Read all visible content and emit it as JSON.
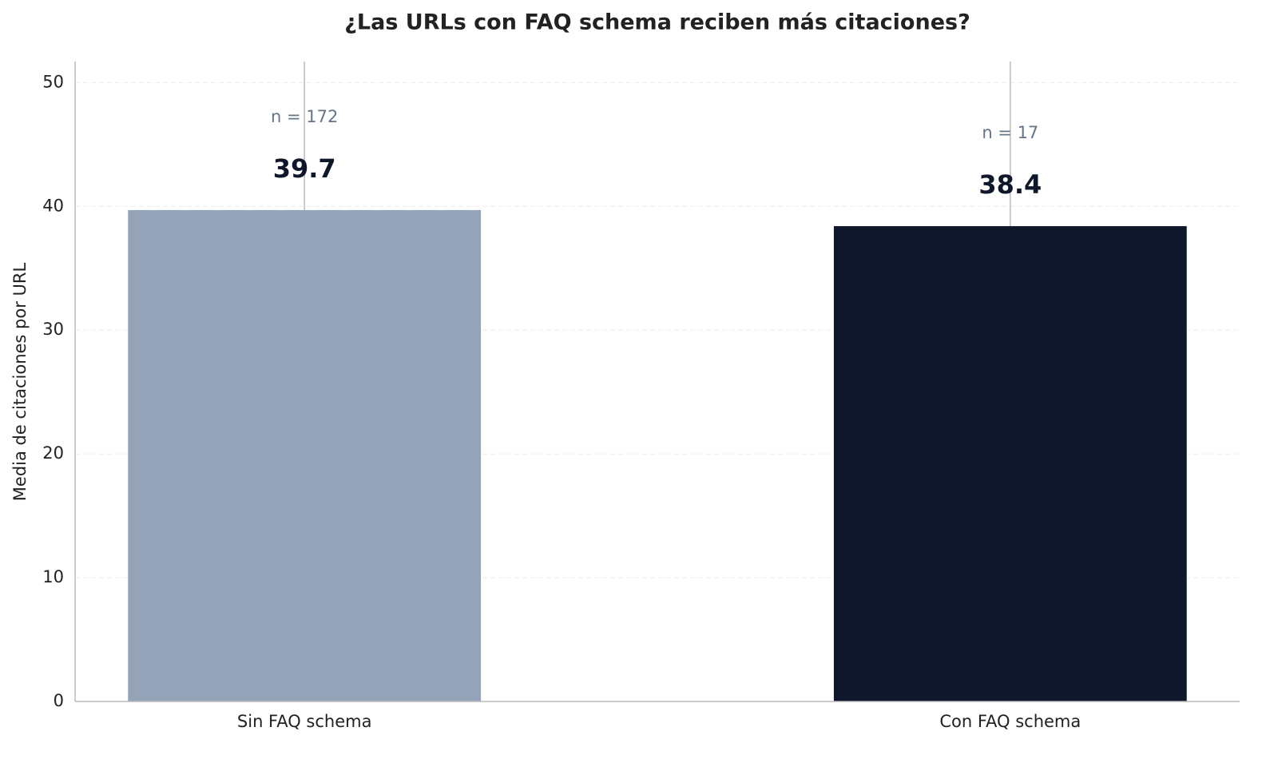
{
  "chart_data": {
    "type": "bar",
    "title": "¿Las URLs con FAQ schema reciben más citaciones?",
    "y_label": "Media de citaciones por URL",
    "categories": [
      "Sin FAQ schema",
      "Con FAQ schema"
    ],
    "values": [
      39.7,
      38.4
    ],
    "errors": [
      20,
      25
    ],
    "colors": [
      "#94a3b8",
      "#0f172a"
    ],
    "annotations": [
      "n = 172",
      "n = 17"
    ],
    "ylim": [
      0,
      51.7
    ],
    "yticks": [
      0,
      10,
      20,
      30,
      40,
      50
    ],
    "grid": true
  }
}
